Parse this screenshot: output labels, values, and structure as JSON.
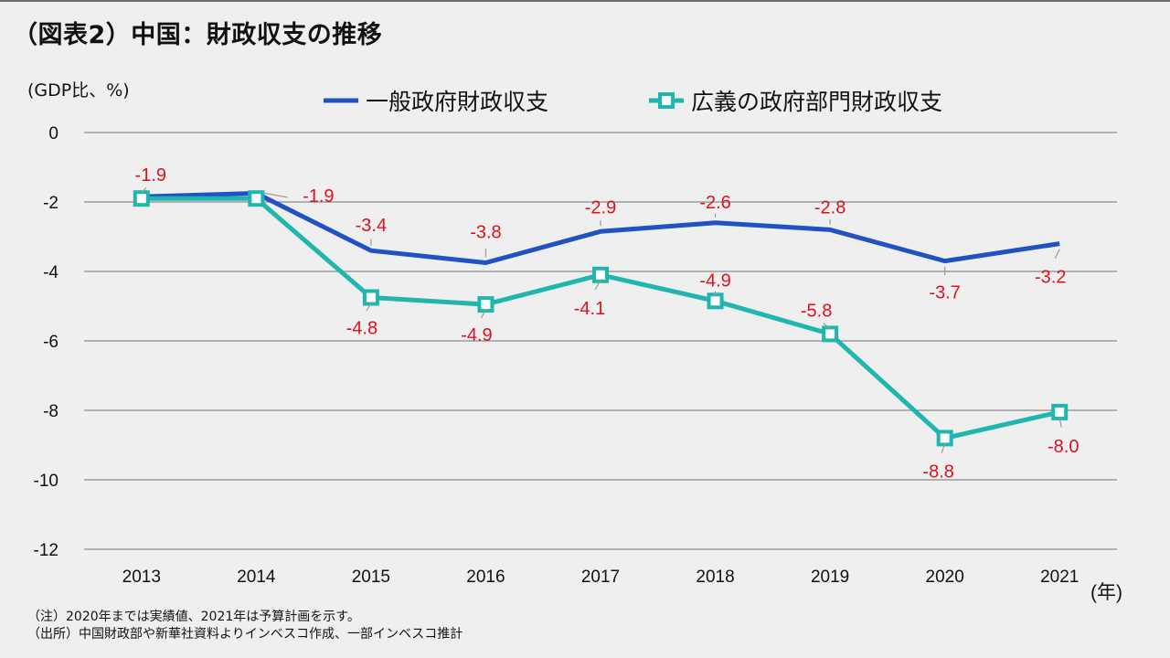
{
  "title": "（図表2）中国：財政収支の推移",
  "unit_label": "(GDP比、%)",
  "year_label": "(年)",
  "notes": [
    "（注）2020年までは実績値、2021年は予算計画を示す。",
    "（出所）中国財政部や新華社資料よりインベスコ作成、一部インベスコ推計"
  ],
  "colors": {
    "general": "#2251c4",
    "broad": "#20b5ad",
    "labels": "#e0101b",
    "grid": "#8a8a8a",
    "leader": "#9a9a9a"
  },
  "chart_data": {
    "type": "line",
    "x": [
      "2013",
      "2014",
      "2015",
      "2016",
      "2017",
      "2018",
      "2019",
      "2020",
      "2021"
    ],
    "ylim": [
      -12,
      0
    ],
    "yticks": [
      0,
      -2,
      -4,
      -6,
      -8,
      -10,
      -12
    ],
    "ytick_labels": [
      "0",
      "-2",
      "-4",
      "-6",
      "-8",
      "-10",
      "-12"
    ],
    "grid": true,
    "legend_position": "top",
    "series": [
      {
        "name": "一般政府財政収支",
        "values": [
          -1.85,
          -1.75,
          -3.4,
          -3.75,
          -2.85,
          -2.6,
          -2.8,
          -3.7,
          -3.2
        ],
        "labels": [
          "",
          "",
          "-3.4",
          "-3.8",
          "-2.9",
          "-2.6",
          "-2.8",
          "-3.7",
          "-3.2"
        ],
        "marker": "none"
      },
      {
        "name": "広義の政府部門財政収支",
        "values": [
          -1.9,
          -1.9,
          -4.75,
          -4.95,
          -4.1,
          -4.85,
          -5.8,
          -8.8,
          -8.05
        ],
        "labels": [
          "-1.9",
          "-1.9",
          "-4.8",
          "-4.9",
          "-4.1",
          "-4.9",
          "-5.8",
          "-8.8",
          "-8.0"
        ],
        "marker": "square"
      }
    ]
  }
}
